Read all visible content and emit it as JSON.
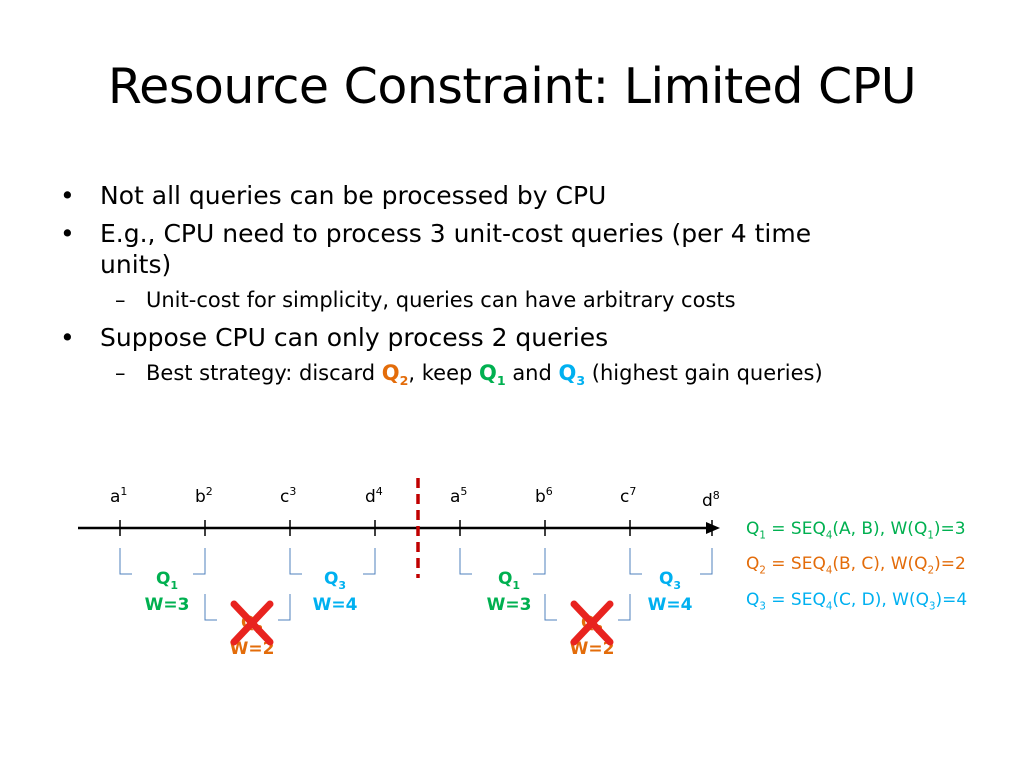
{
  "title": "Resource Constraint: Limited CPU",
  "bullets": {
    "b1": "Not all queries can be processed by CPU",
    "b2_line1": "E.g., CPU need to process 3 unit-cost queries (per 4 time",
    "b2_line2": "units)",
    "b2_sub": "Unit-cost for simplicity, queries can have arbitrary costs",
    "b3": "Suppose CPU can only process 2 queries",
    "b3_sub_prefix": "Best strategy: discard ",
    "b3_sub_sep1": ", keep ",
    "b3_sub_sep2": " and ",
    "b3_sub_suffix": " (highest gain queries)"
  },
  "query_labels": {
    "q1_letter": "Q",
    "q1_num": "1",
    "q2_letter": "Q",
    "q2_num": "2",
    "q3_letter": "Q",
    "q3_num": "3"
  },
  "timeline": {
    "events": [
      {
        "letter": "a",
        "sup": "1"
      },
      {
        "letter": "b",
        "sup": "2"
      },
      {
        "letter": "c",
        "sup": "3"
      },
      {
        "letter": "d",
        "sup": "4"
      },
      {
        "letter": "a",
        "sup": "5"
      },
      {
        "letter": "b",
        "sup": "6"
      },
      {
        "letter": "c",
        "sup": "7"
      },
      {
        "letter": "d",
        "sup": "8"
      }
    ],
    "windows": [
      {
        "label": "Q",
        "num": "1",
        "weight": "W=3",
        "color": "#00b050",
        "discarded": false
      },
      {
        "label": "Q",
        "num": "2",
        "weight": "W=2",
        "color": "#e36c0a",
        "discarded": true
      },
      {
        "label": "Q",
        "num": "3",
        "weight": "W=4",
        "color": "#00b0f0",
        "discarded": false
      },
      {
        "label": "Q",
        "num": "1",
        "weight": "W=3",
        "color": "#00b050",
        "discarded": false
      },
      {
        "label": "Q",
        "num": "2",
        "weight": "W=2",
        "color": "#e36c0a",
        "discarded": true
      },
      {
        "label": "Q",
        "num": "3",
        "weight": "W=4",
        "color": "#00b0f0",
        "discarded": false
      }
    ]
  },
  "legend": {
    "l1": {
      "q": "Q",
      "qn": "1",
      "mid": " = SEQ",
      "seqn": "4",
      "args": "(A, B), W(Q",
      "wn": "1",
      "end": ")=3",
      "color": "#00b050"
    },
    "l2": {
      "q": "Q",
      "qn": "2",
      "mid": " = SEQ",
      "seqn": "4",
      "args": "(B, C), W(Q",
      "wn": "2",
      "end": ")=2",
      "color": "#e36c0a"
    },
    "l3": {
      "q": "Q",
      "qn": "3",
      "mid": " = SEQ",
      "seqn": "4",
      "args": "(C, D), W(Q",
      "wn": "3",
      "end": ")=4",
      "color": "#00b0f0"
    }
  },
  "colors": {
    "cross": "#e8231f",
    "divider": "#c00000",
    "bracket": "#4f81bd"
  }
}
